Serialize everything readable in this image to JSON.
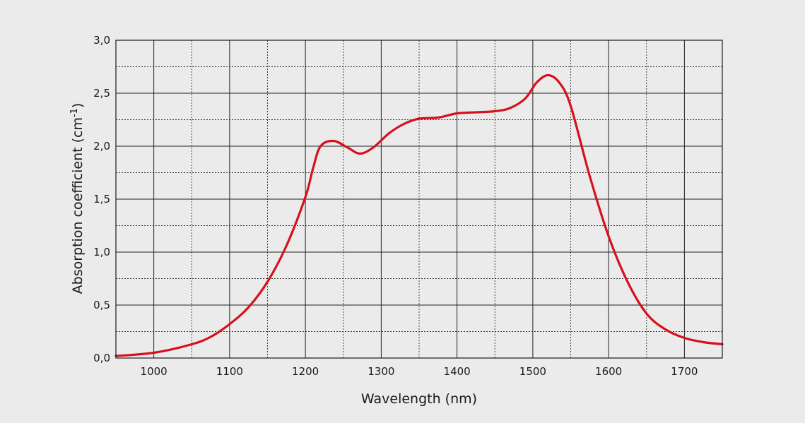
{
  "chart_data": {
    "type": "line",
    "title": "",
    "xlabel": "Wavelength (nm)",
    "ylabel": {
      "prefix": "Absorption coefficient (cm",
      "superscript": "-1",
      "suffix": ")"
    },
    "xlim": [
      950,
      1750
    ],
    "ylim": [
      0,
      3.0
    ],
    "x_ticks": [
      1000,
      1100,
      1200,
      1300,
      1400,
      1500,
      1600,
      1700
    ],
    "x_tick_labels": [
      "1000",
      "1100",
      "1200",
      "1300",
      "1400",
      "1500",
      "1600",
      "1700"
    ],
    "x_minor_ticks": [
      1050,
      1150,
      1250,
      1350,
      1450,
      1550,
      1650
    ],
    "y_ticks": [
      0,
      0.5,
      1.0,
      1.5,
      2.0,
      2.5,
      3.0
    ],
    "y_tick_labels": [
      "0,0",
      "0,5",
      "1,0",
      "1,5",
      "2,0",
      "2,5",
      "3,0"
    ],
    "y_minor_ticks": [
      0.25,
      0.75,
      1.25,
      1.75,
      2.25,
      2.75
    ],
    "grid": true,
    "series": [
      {
        "color": "#d6101e",
        "x": [
          950,
          1000,
          1050,
          1075,
          1100,
          1125,
          1150,
          1175,
          1200,
          1210,
          1220,
          1237,
          1255,
          1272,
          1290,
          1310,
          1330,
          1350,
          1375,
          1400,
          1425,
          1450,
          1470,
          1490,
          1505,
          1520,
          1535,
          1550,
          1575,
          1600,
          1625,
          1650,
          1675,
          1700,
          1725,
          1750
        ],
        "y": [
          0.02,
          0.05,
          0.13,
          0.2,
          0.32,
          0.48,
          0.72,
          1.06,
          1.52,
          1.79,
          2.0,
          2.05,
          1.99,
          1.93,
          1.99,
          2.12,
          2.21,
          2.26,
          2.27,
          2.31,
          2.32,
          2.33,
          2.36,
          2.45,
          2.6,
          2.67,
          2.6,
          2.38,
          1.72,
          1.15,
          0.72,
          0.42,
          0.27,
          0.19,
          0.15,
          0.13
        ]
      }
    ]
  }
}
